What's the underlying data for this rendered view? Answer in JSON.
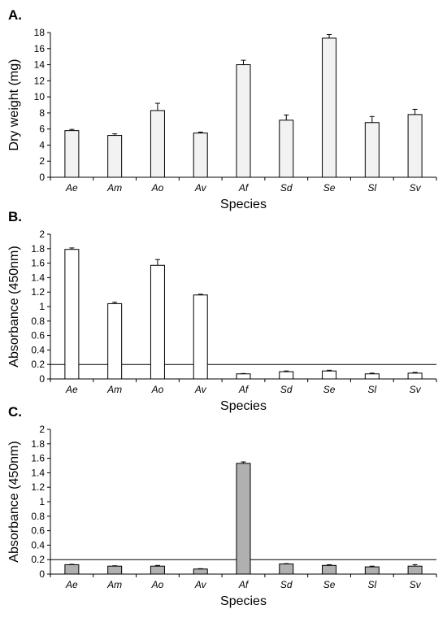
{
  "chart_data": [
    {
      "type": "bar",
      "panel_label": "A.",
      "categories": [
        "Ae",
        "Am",
        "Ao",
        "Av",
        "Af",
        "Sd",
        "Se",
        "Sl",
        "Sv"
      ],
      "values": [
        5.8,
        5.2,
        8.3,
        5.5,
        14.0,
        7.1,
        17.3,
        6.8,
        7.8
      ],
      "errors": [
        0.15,
        0.2,
        0.9,
        0.12,
        0.55,
        0.65,
        0.45,
        0.75,
        0.65
      ],
      "xlabel": "Species",
      "ylabel": "Dry weight (mg)",
      "ylim": [
        0,
        18
      ],
      "yticks": [
        0,
        2,
        4,
        6,
        8,
        10,
        12,
        14,
        16,
        18
      ],
      "ytick_labels": [
        "0",
        "2",
        "4",
        "6",
        "8",
        "10",
        "12",
        "14",
        "16",
        "18"
      ],
      "bar_color": "#f2f2f2",
      "cutoff": null
    },
    {
      "type": "bar",
      "panel_label": "B.",
      "categories": [
        "Ae",
        "Am",
        "Ao",
        "Av",
        "Af",
        "Sd",
        "Se",
        "Sl",
        "Sv"
      ],
      "values": [
        1.79,
        1.04,
        1.57,
        1.16,
        0.07,
        0.1,
        0.11,
        0.07,
        0.08
      ],
      "errors": [
        0.02,
        0.02,
        0.08,
        0.01,
        0.005,
        0.01,
        0.01,
        0.01,
        0.01
      ],
      "xlabel": "Species",
      "ylabel": "Absorbance (450nm)",
      "ylim": [
        0,
        2
      ],
      "yticks": [
        0,
        0.2,
        0.4,
        0.6,
        0.8,
        1,
        1.2,
        1.4,
        1.6,
        1.8,
        2
      ],
      "ytick_labels": [
        "0",
        "0.2",
        "0.4",
        "0.6",
        "0.8",
        "1",
        "1.2",
        "1.4",
        "1.6",
        "1.8",
        "2"
      ],
      "bar_color": "#ffffff",
      "cutoff": 0.2
    },
    {
      "type": "bar",
      "panel_label": "C.",
      "categories": [
        "Ae",
        "Am",
        "Ao",
        "Av",
        "Af",
        "Sd",
        "Se",
        "Sl",
        "Sv"
      ],
      "values": [
        0.13,
        0.11,
        0.11,
        0.07,
        1.53,
        0.14,
        0.12,
        0.1,
        0.11
      ],
      "errors": [
        0.005,
        0.005,
        0.01,
        0.005,
        0.02,
        0.005,
        0.01,
        0.01,
        0.02
      ],
      "xlabel": "Species",
      "ylabel": "Absorbance (450nm)",
      "ylim": [
        0,
        2
      ],
      "yticks": [
        0,
        0.2,
        0.4,
        0.6,
        0.8,
        1,
        1.2,
        1.4,
        1.6,
        1.8,
        2
      ],
      "ytick_labels": [
        "0",
        "0.2",
        "0.4",
        "0.6",
        "0.8",
        "1",
        "1.2",
        "1.4",
        "1.6",
        "1.8",
        "2"
      ],
      "bar_color": "#b0b0b0",
      "cutoff": 0.2
    }
  ]
}
